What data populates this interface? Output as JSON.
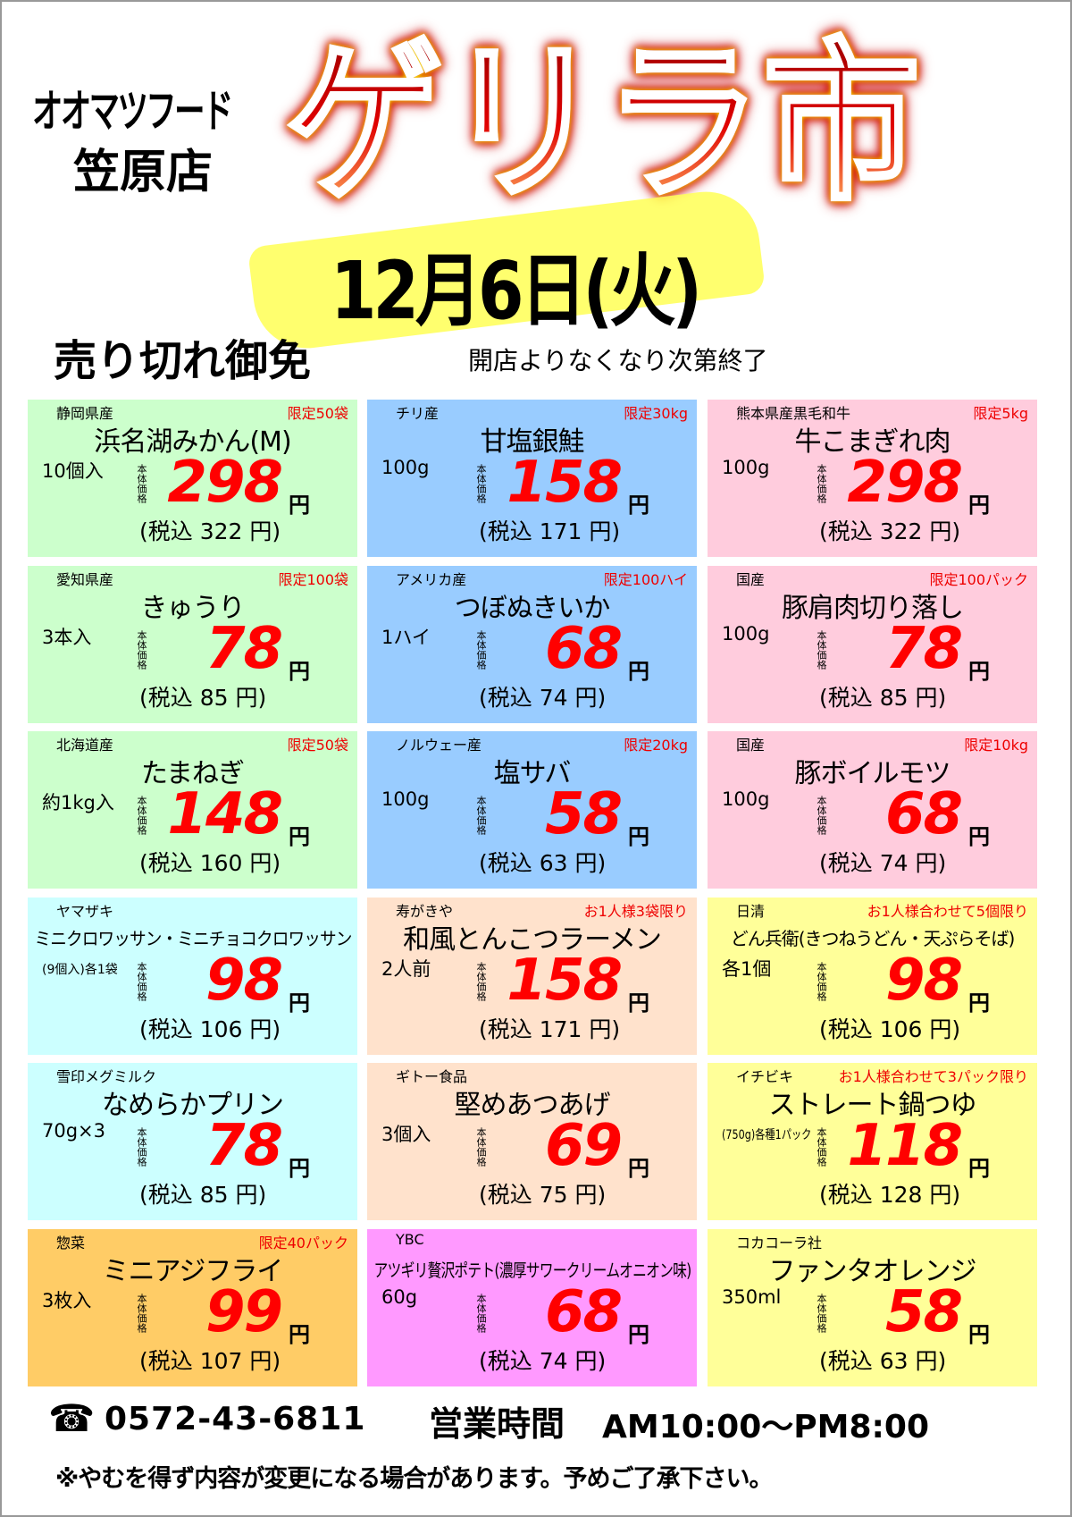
{
  "header": {
    "store_name": "オオマツフード",
    "branch": "笠原店",
    "title": "ゲリラ市",
    "date": "12月6日(火)",
    "sold_out": "売り切れ御免",
    "until": "開店よりなくなり次第終了"
  },
  "labels": {
    "base_price": "本体価格",
    "yen": "円",
    "tax_prefix": "(税込",
    "tax_suffix": "円)"
  },
  "colors": {
    "green": "#ccffcc",
    "blue": "#99ccff",
    "pink": "#ffccdd",
    "cyan": "#ccffff",
    "peach": "#ffe2cc",
    "yellow": "#ffff99",
    "orange": "#ffcc66",
    "magenta": "#ff99ff",
    "price": "#ff0000"
  },
  "items": [
    {
      "origin": "静岡県産",
      "limit": "限定50袋",
      "name": "浜名湖みかん(M)",
      "qty": "10個入",
      "price": "298",
      "tax": "322",
      "color": "#ccffcc"
    },
    {
      "origin": "チリ産",
      "limit": "限定30kg",
      "name": "甘塩銀鮭",
      "qty": "100g",
      "price": "158",
      "tax": "171",
      "color": "#99ccff"
    },
    {
      "origin": "熊本県産黒毛和牛",
      "limit": "限定5kg",
      "name": "牛こまぎれ肉",
      "qty": "100g",
      "price": "298",
      "tax": "322",
      "color": "#ffccdd"
    },
    {
      "origin": "愛知県産",
      "limit": "限定100袋",
      "name": "きゅうり",
      "qty": "3本入",
      "price": "78",
      "tax": "85",
      "color": "#ccffcc"
    },
    {
      "origin": "アメリカ産",
      "limit": "限定100ハイ",
      "name": "つぼぬきいか",
      "qty": "1ハイ",
      "price": "68",
      "tax": "74",
      "color": "#99ccff"
    },
    {
      "origin": "国産",
      "limit": "限定100パック",
      "name": "豚肩肉切り落し",
      "qty": "100g",
      "price": "78",
      "tax": "85",
      "color": "#ffccdd"
    },
    {
      "origin": "北海道産",
      "limit": "限定50袋",
      "name": "たまねぎ",
      "qty": "約1kg入",
      "price": "148",
      "tax": "160",
      "color": "#ccffcc"
    },
    {
      "origin": "ノルウェー産",
      "limit": "限定20kg",
      "name": "塩サバ",
      "qty": "100g",
      "price": "58",
      "tax": "63",
      "color": "#99ccff"
    },
    {
      "origin": "国産",
      "limit": "限定10kg",
      "name": "豚ボイルモツ",
      "qty": "100g",
      "price": "68",
      "tax": "74",
      "color": "#ffccdd"
    },
    {
      "origin": "ヤマザキ",
      "limit": "",
      "name": "ミニクロワッサン・ミニチョコクロワッサン",
      "qty": "(9個入)各1袋",
      "price": "98",
      "tax": "106",
      "color": "#ccffff"
    },
    {
      "origin": "寿がきや",
      "limit": "お1人様3袋限り",
      "name": "和風とんこつラーメン",
      "qty": "2人前",
      "price": "158",
      "tax": "171",
      "color": "#ffe2cc"
    },
    {
      "origin": "日清",
      "limit": "お1人様合わせて5個限り",
      "name": "どん兵衛(きつねうどん・天ぷらそば)",
      "qty": "各1個",
      "price": "98",
      "tax": "106",
      "color": "#ffff99"
    },
    {
      "origin": "雪印メグミルク",
      "limit": "",
      "name": "なめらかプリン",
      "qty": "70g×3",
      "price": "78",
      "tax": "85",
      "color": "#ccffff"
    },
    {
      "origin": "ギトー食品",
      "limit": "",
      "name": "堅めあつあげ",
      "qty": "3個入",
      "price": "69",
      "tax": "75",
      "color": "#ffe2cc"
    },
    {
      "origin": "イチビキ",
      "limit": "お1人様合わせて3パック限り",
      "name": "ストレート鍋つゆ",
      "qty": "(750g)各種1パック",
      "price": "118",
      "tax": "128",
      "color": "#ffff99"
    },
    {
      "origin": "惣菜",
      "limit": "限定40パック",
      "name": "ミニアジフライ",
      "qty": "3枚入",
      "price": "99",
      "tax": "107",
      "color": "#ffcc66"
    },
    {
      "origin": "YBC",
      "limit": "",
      "name": "アツギリ贅沢ポテト(濃厚サワークリームオニオン味)",
      "qty": "60g",
      "price": "68",
      "tax": "74",
      "color": "#ff99ff"
    },
    {
      "origin": "コカコーラ社",
      "limit": "",
      "name": "ファンタオレンジ",
      "qty": "350ml",
      "price": "58",
      "tax": "63",
      "color": "#ffff99"
    }
  ],
  "footer": {
    "phone_icon": "telephone-icon",
    "phone_symbol": "☎",
    "phone": "0572-43-6811",
    "hours_label": "営業時間",
    "hours": "AM10:00〜PM8:00",
    "note": "※やむを得ず内容が変更になる場合があります。予めご了承下さい。"
  }
}
